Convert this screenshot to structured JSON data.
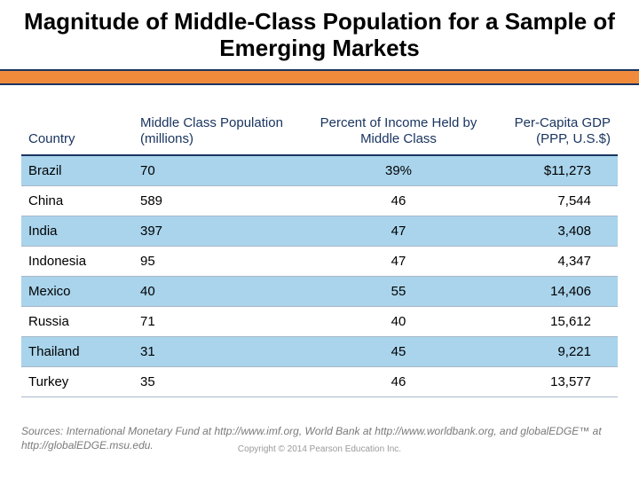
{
  "title": "Magnitude of Middle-Class Population for a Sample of Emerging Markets",
  "accent_bar_color": "#f08b3c",
  "accent_border_color": "#1a3560",
  "table": {
    "type": "table",
    "header_text_color": "#1a3560",
    "zebra_color": "#a9d4ec",
    "row_border_color": "#a9b7c9",
    "columns": [
      {
        "key": "country",
        "label": "Country",
        "align": "left"
      },
      {
        "key": "pop",
        "label": "Middle Class Population (millions)",
        "align": "left"
      },
      {
        "key": "pct",
        "label": "Percent of Income Held by Middle Class",
        "align": "center"
      },
      {
        "key": "gdp",
        "label": "Per-Capita GDP (PPP, U.S.$)",
        "align": "right"
      }
    ],
    "rows": [
      {
        "country": "Brazil",
        "pop": "70",
        "pct": "39%",
        "gdp": "$11,273"
      },
      {
        "country": "China",
        "pop": "589",
        "pct": "46",
        "gdp": "7,544"
      },
      {
        "country": "India",
        "pop": "397",
        "pct": "47",
        "gdp": "3,408"
      },
      {
        "country": "Indonesia",
        "pop": "95",
        "pct": "47",
        "gdp": "4,347"
      },
      {
        "country": "Mexico",
        "pop": "40",
        "pct": "55",
        "gdp": "14,406"
      },
      {
        "country": "Russia",
        "pop": "71",
        "pct": "40",
        "gdp": "15,612"
      },
      {
        "country": "Thailand",
        "pop": "31",
        "pct": "45",
        "gdp": "9,221"
      },
      {
        "country": "Turkey",
        "pop": "35",
        "pct": "46",
        "gdp": "13,577"
      }
    ]
  },
  "sources_label": "Sources:",
  "sources_text": "International Monetary Fund at http://www.imf.org, World Bank at http://www.worldbank.org, and globalEDGE™ at http://globalEDGE.msu.edu.",
  "copyright": "Copyright © 2014 Pearson Education Inc."
}
